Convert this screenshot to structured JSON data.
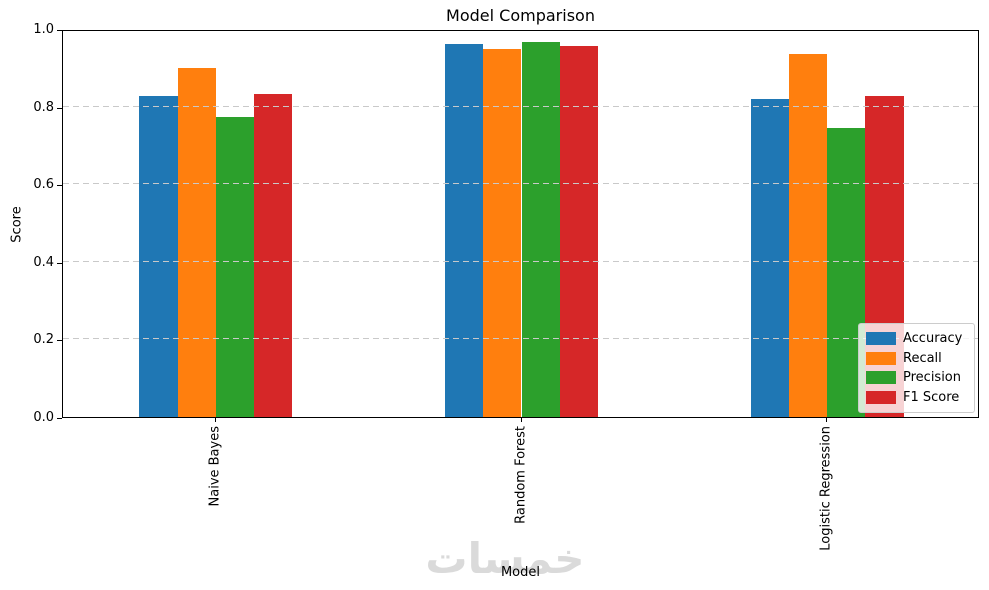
{
  "watermark_text": "خمسات",
  "chart_data": {
    "type": "bar",
    "title": "Model Comparison",
    "xlabel": "Model",
    "ylabel": "Score",
    "categories": [
      "Naive Bayes",
      "Random Forest",
      "Logistic Regression"
    ],
    "series": [
      {
        "name": "Accuracy",
        "color": "#1f77b4",
        "values": [
          0.828,
          0.961,
          0.82
        ]
      },
      {
        "name": "Recall",
        "color": "#ff7f0e",
        "values": [
          0.9,
          0.949,
          0.936
        ]
      },
      {
        "name": "Precision",
        "color": "#2ca02c",
        "values": [
          0.773,
          0.966,
          0.745
        ]
      },
      {
        "name": "F1 Score",
        "color": "#d62728",
        "values": [
          0.833,
          0.957,
          0.828
        ]
      }
    ],
    "ylim": [
      0.0,
      1.0
    ],
    "yticks": [
      {
        "value": 0.0,
        "label": "0.0"
      },
      {
        "value": 0.2,
        "label": "0.2"
      },
      {
        "value": 0.4,
        "label": "0.4"
      },
      {
        "value": 0.6,
        "label": "0.6"
      },
      {
        "value": 0.8,
        "label": "0.8"
      },
      {
        "value": 1.0,
        "label": "1.0"
      }
    ],
    "grid": "horizontal-dashed",
    "legend_position": "lower right"
  }
}
